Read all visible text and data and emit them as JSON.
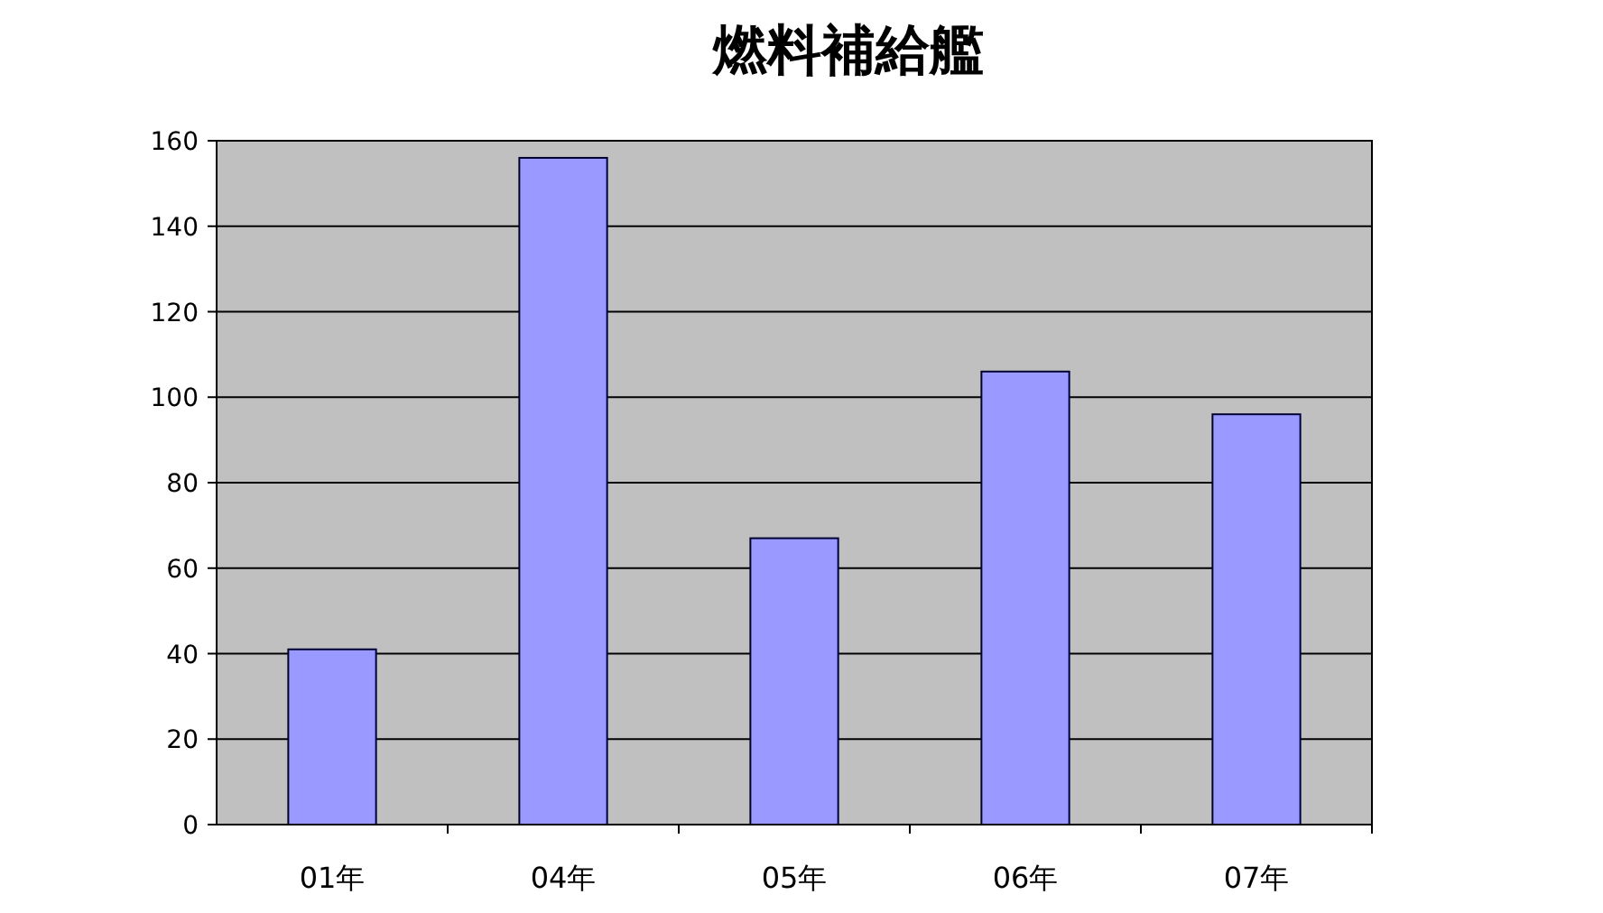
{
  "chart_data": {
    "type": "bar",
    "title": "燃料補給艦",
    "categories": [
      "01年",
      "04年",
      "05年",
      "06年",
      "07年"
    ],
    "values": [
      41,
      156,
      67,
      106,
      96
    ],
    "color": "#9999ff",
    "ylim": [
      0,
      160
    ],
    "yticks": [
      0,
      20,
      40,
      60,
      80,
      100,
      120,
      140,
      160
    ],
    "grid": "y"
  }
}
